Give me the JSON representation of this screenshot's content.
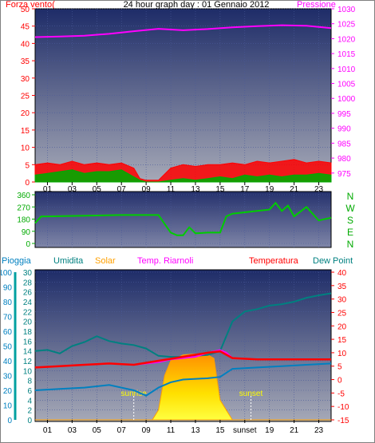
{
  "header": {
    "left_label": "Forza vento(",
    "title": "24 hour graph day : 01 Gennaio 2012",
    "right_label": "Pressione"
  },
  "colors": {
    "wind_avg": "#00aa00",
    "wind_gust": "#ff0000",
    "pressure": "#ff00ff",
    "direction": "#00cc00",
    "rain_axis": "#00a0a0",
    "humidity": "#008080",
    "solar": "#ffa000",
    "indoor_temp": "#ff00ff",
    "temperature": "#ff0000",
    "dew_point": "#0080c0",
    "compass": "#00aa00"
  },
  "compass": [
    "N",
    "W",
    "S",
    "E",
    "N"
  ],
  "bottom_legend": {
    "rain": "Pioggia",
    "humidity": "Umidita",
    "solar": "Solar",
    "indoor_temp": "Temp. Riarnoli",
    "temperature": "Temperatura",
    "dew_point": "Dew Point",
    "sunrise": "sunrise",
    "sunset": "sunset"
  },
  "chart_data": [
    {
      "type": "line",
      "name": "wind-pressure",
      "x_ticks": [
        "01",
        "03",
        "05",
        "07",
        "09",
        "11",
        "13",
        "15",
        "17",
        "19",
        "21",
        "23"
      ],
      "y_left_ticks": [
        0,
        5,
        10,
        15,
        20,
        25,
        30,
        35,
        40,
        45,
        50
      ],
      "y_left_range": [
        0,
        50
      ],
      "y_right_ticks": [
        975,
        980,
        985,
        990,
        995,
        1000,
        1005,
        1010,
        1015,
        1020,
        1025,
        1030
      ],
      "y_right_range": [
        972,
        1030
      ],
      "pressure": {
        "x": [
          0,
          2,
          4,
          6,
          8,
          10,
          12,
          14,
          16,
          18,
          20,
          22,
          24
        ],
        "y": [
          1020.5,
          1020.7,
          1021.0,
          1021.6,
          1022.5,
          1023.3,
          1022.8,
          1023.2,
          1023.8,
          1024.2,
          1024.5,
          1024.3,
          1023.5
        ]
      },
      "wind_gust": {
        "x": [
          0,
          1,
          2,
          3,
          4,
          5,
          6,
          7,
          8,
          8.5,
          9,
          10,
          11,
          12,
          13,
          14,
          15,
          16,
          17,
          18,
          19,
          20,
          21,
          22,
          23,
          24
        ],
        "y": [
          5,
          5.5,
          5,
          6,
          5,
          5.5,
          5,
          5.5,
          4,
          1,
          0.5,
          0.5,
          4,
          5,
          4.5,
          5,
          5,
          5.5,
          5,
          6,
          5.5,
          6,
          6.5,
          5.5,
          6,
          5.5
        ]
      },
      "wind_avg": {
        "x": [
          0,
          1,
          2,
          3,
          4,
          5,
          6,
          7,
          8,
          8.5,
          9,
          10,
          11,
          12,
          13,
          14,
          15,
          16,
          17,
          18,
          19,
          20,
          21,
          22,
          23,
          24
        ],
        "y": [
          2,
          2.5,
          3,
          3.5,
          2.5,
          3,
          3,
          3.5,
          1.5,
          0.5,
          0,
          0,
          0.5,
          1,
          0.5,
          1,
          1.5,
          1,
          2,
          1.5,
          2,
          1.5,
          2,
          2,
          2.5,
          2
        ]
      }
    },
    {
      "type": "line",
      "name": "wind-direction",
      "y_ticks": [
        0,
        90,
        180,
        270,
        360
      ],
      "y_range": [
        0,
        360
      ],
      "direction": {
        "x": [
          0,
          0.5,
          1,
          4,
          7,
          8,
          10,
          11,
          11.5,
          12,
          12.5,
          13,
          14,
          15,
          15.5,
          16,
          17,
          18,
          19,
          19.5,
          20,
          20.5,
          21,
          22,
          23,
          24
        ],
        "y": [
          150,
          200,
          200,
          205,
          210,
          210,
          210,
          80,
          60,
          60,
          120,
          75,
          80,
          80,
          200,
          220,
          230,
          240,
          250,
          300,
          240,
          280,
          200,
          270,
          170,
          190
        ]
      }
    },
    {
      "type": "line",
      "name": "atmospheric",
      "rain_ticks": [
        0,
        10,
        20,
        30,
        40,
        50,
        60,
        70,
        80,
        90,
        100
      ],
      "rain_range": [
        0,
        100
      ],
      "humidity_ticks": [
        0,
        2,
        4,
        6,
        8,
        10,
        12,
        14,
        16,
        18,
        20,
        22,
        24,
        26,
        28,
        30
      ],
      "humidity_range": [
        0,
        30
      ],
      "temp_ticks": [
        -15,
        -10,
        -5,
        0,
        5,
        10,
        15,
        20,
        25,
        30,
        35,
        40
      ],
      "temp_range": [
        -15,
        40
      ],
      "x_ticks": [
        "01",
        "03",
        "05",
        "07",
        "09",
        "11",
        "13",
        "15",
        "sunset",
        "19",
        "21",
        "23"
      ],
      "humidity": {
        "x": [
          0,
          1,
          2,
          3,
          4,
          5,
          6,
          7,
          8,
          9,
          10,
          11,
          12,
          13,
          14,
          15,
          16,
          17,
          18,
          19,
          20,
          21,
          22,
          23,
          24
        ],
        "y": [
          14,
          14.2,
          13.5,
          15,
          15.8,
          17,
          16,
          15.5,
          15.2,
          14.5,
          13,
          12.8,
          12.8,
          13,
          13.2,
          14,
          20,
          22,
          22.5,
          23.2,
          23.5,
          24,
          24.8,
          25.3,
          25.7
        ]
      },
      "temperature": {
        "x": [
          0,
          2,
          4,
          6,
          8,
          10,
          12,
          14,
          15,
          16,
          18,
          20,
          22,
          24
        ],
        "y": [
          4.5,
          5,
          5.5,
          6,
          5.5,
          7,
          8.5,
          10,
          10.5,
          8,
          7.5,
          7.5,
          7.5,
          7.5
        ]
      },
      "indoor_temp": {
        "x": [
          0,
          2,
          4,
          6,
          8,
          10,
          11,
          12,
          13,
          14,
          15,
          15.5,
          16,
          18,
          20,
          22,
          24
        ],
        "y": [
          4.5,
          5,
          5.5,
          6,
          5.5,
          6.5,
          7.5,
          8,
          8.5,
          10,
          11,
          10,
          8,
          7.5,
          7.5,
          7.5,
          7.5
        ]
      },
      "dew_point": {
        "x": [
          0,
          2,
          4,
          6,
          8,
          9,
          10,
          11,
          12,
          14,
          15,
          16,
          18,
          20,
          22,
          24
        ],
        "y": [
          -4,
          -3.5,
          -3,
          -2,
          -4,
          -6,
          -3,
          -1,
          0,
          0.5,
          1,
          4,
          4.5,
          5,
          5.5,
          6
        ]
      },
      "solar": {
        "x": [
          0,
          9.5,
          10,
          10.5,
          11,
          12,
          13,
          14,
          14.5,
          15,
          15.5,
          16,
          24
        ],
        "y": [
          0,
          0,
          2,
          9,
          12,
          13.2,
          13.4,
          13.2,
          12.5,
          4,
          2,
          0,
          0
        ]
      },
      "sunrise_hour": 8,
      "sunset_hour": 17.5
    }
  ]
}
